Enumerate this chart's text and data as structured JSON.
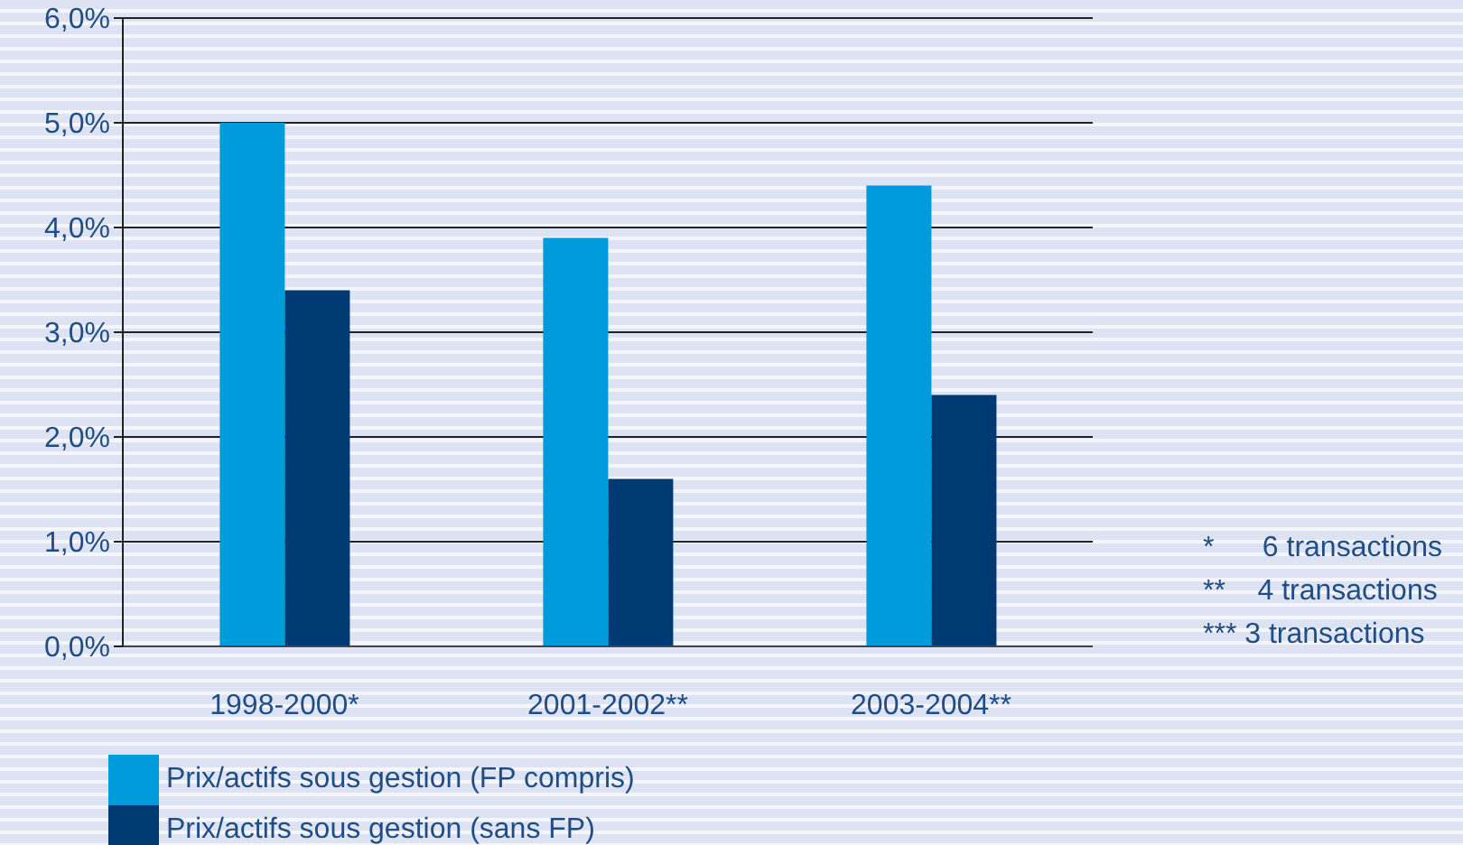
{
  "chart_data": {
    "type": "bar",
    "categories": [
      "1998-2000*",
      "2001-2002**",
      "2003-2004**"
    ],
    "series": [
      {
        "name": "Prix/actifs sous gestion (FP compris)",
        "color": "#009bdb",
        "values": [
          5.0,
          3.9,
          4.4
        ]
      },
      {
        "name": "Prix/actifs sous gestion (sans FP)",
        "color": "#003a72",
        "values": [
          3.4,
          1.6,
          2.4
        ]
      }
    ],
    "ylim": [
      0,
      6
    ],
    "yticks": [
      {
        "value": 0,
        "label": "0,0%"
      },
      {
        "value": 1,
        "label": "1,0%"
      },
      {
        "value": 2,
        "label": "2,0%"
      },
      {
        "value": 3,
        "label": "3,0%"
      },
      {
        "value": 4,
        "label": "4,0%"
      },
      {
        "value": 5,
        "label": "5,0%"
      },
      {
        "value": 6,
        "label": "6,0%"
      }
    ],
    "grid": "y",
    "legend": "bottom",
    "annotations": [
      "*      6 transactions",
      "**    4 transactions",
      "*** 3 transactions"
    ]
  }
}
